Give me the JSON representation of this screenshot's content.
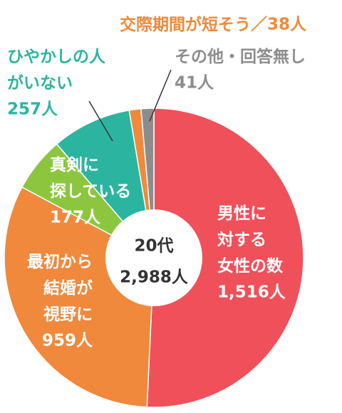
{
  "chart_data": {
    "type": "pie",
    "center_title": "20代",
    "center_label": "2,988人",
    "categories": [
      "男性に対する女性の数",
      "最初から結婚が視野に",
      "真剣に探している",
      "ひやかしの人がいない",
      "交際期間が短そう",
      "その他・回答無し"
    ],
    "values": [
      1516,
      959,
      177,
      257,
      38,
      41
    ],
    "value_labels": [
      "1,516人",
      "959人",
      "177人",
      "257人",
      "／38人",
      "41人"
    ],
    "colors": [
      "#f0505a",
      "#f0893c",
      "#8cc63e",
      "#2bb5a0",
      "#f0893c",
      "#8c8c8c"
    ]
  }
}
